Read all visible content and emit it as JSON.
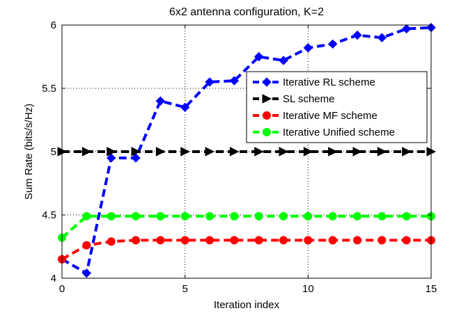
{
  "chart_data": {
    "type": "line",
    "title": "6x2 antenna configuration, K=2",
    "xlabel": "Iteration index",
    "ylabel": "Sum Rate (bits/s/Hz)",
    "xlim": [
      0,
      15
    ],
    "ylim": [
      4,
      6
    ],
    "xticks": [
      0,
      5,
      10,
      15
    ],
    "yticks": [
      4,
      4.5,
      5,
      5.5,
      6
    ],
    "xtick_labels": [
      "0",
      "5",
      "10",
      "15"
    ],
    "ytick_labels": [
      "4",
      "4.5",
      "5",
      "5.5",
      "6"
    ],
    "grid": true,
    "legend_position": "top-right",
    "x": [
      0,
      1,
      2,
      3,
      4,
      5,
      6,
      7,
      8,
      9,
      10,
      11,
      12,
      13,
      14,
      15
    ],
    "series": [
      {
        "name": "Iterative RL scheme",
        "color": "#0000ff",
        "marker": "diamond",
        "values": [
          4.15,
          4.04,
          4.95,
          4.95,
          5.4,
          5.35,
          5.55,
          5.56,
          5.75,
          5.72,
          5.82,
          5.85,
          5.92,
          5.9,
          5.97,
          5.98
        ]
      },
      {
        "name": "SL scheme",
        "color": "#000000",
        "marker": "triangle-right",
        "values": [
          5.0,
          5.0,
          5.0,
          5.0,
          5.0,
          5.0,
          5.0,
          5.0,
          5.0,
          5.0,
          5.0,
          5.0,
          5.0,
          5.0,
          5.0,
          5.0
        ]
      },
      {
        "name": "Iterative MF scheme",
        "color": "#ff0000",
        "marker": "circle",
        "values": [
          4.15,
          4.26,
          4.29,
          4.3,
          4.3,
          4.3,
          4.3,
          4.3,
          4.3,
          4.3,
          4.3,
          4.3,
          4.3,
          4.3,
          4.3,
          4.3
        ]
      },
      {
        "name": "Iterative Unified scheme",
        "color": "#00ff00",
        "marker": "circle",
        "values": [
          4.32,
          4.49,
          4.49,
          4.49,
          4.49,
          4.49,
          4.49,
          4.49,
          4.49,
          4.49,
          4.49,
          4.49,
          4.49,
          4.49,
          4.49,
          4.49
        ]
      }
    ]
  }
}
